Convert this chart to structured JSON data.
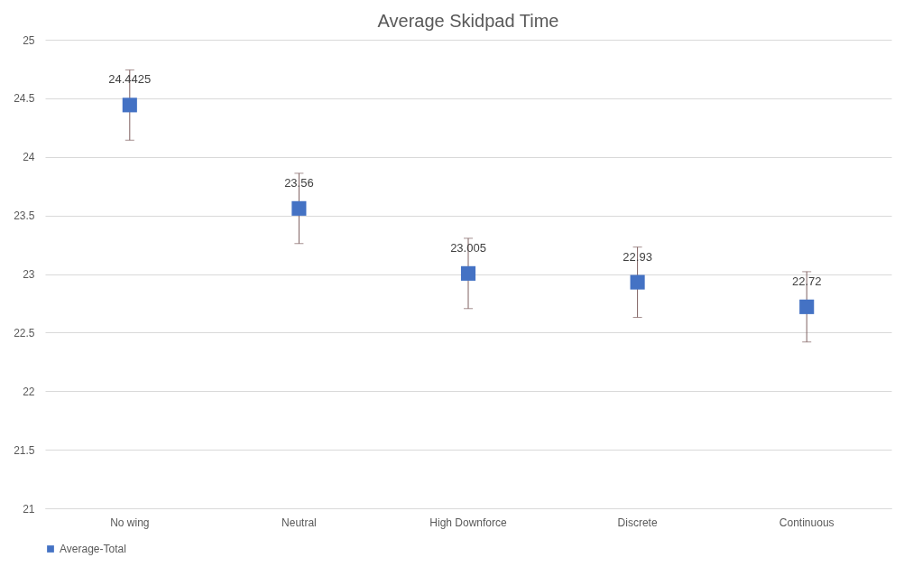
{
  "chart_data": {
    "type": "scatter",
    "title": "Average Skidpad Time",
    "categories": [
      "No wing",
      "Neutral",
      "High Downforce",
      "Discrete",
      "Continuous"
    ],
    "series": [
      {
        "name": "Average-Total",
        "color": "#4472c4",
        "values": [
          24.4425,
          23.56,
          23.005,
          22.93,
          22.72
        ],
        "errors": [
          0.3,
          0.3,
          0.3,
          0.3,
          0.3
        ]
      }
    ],
    "ylim": [
      21,
      25
    ],
    "yticks": [
      21,
      21.5,
      22,
      22.5,
      23,
      23.5,
      24,
      24.5,
      25
    ],
    "grid": "y",
    "legend": "bottom",
    "marker": "square",
    "data_labels": true
  }
}
